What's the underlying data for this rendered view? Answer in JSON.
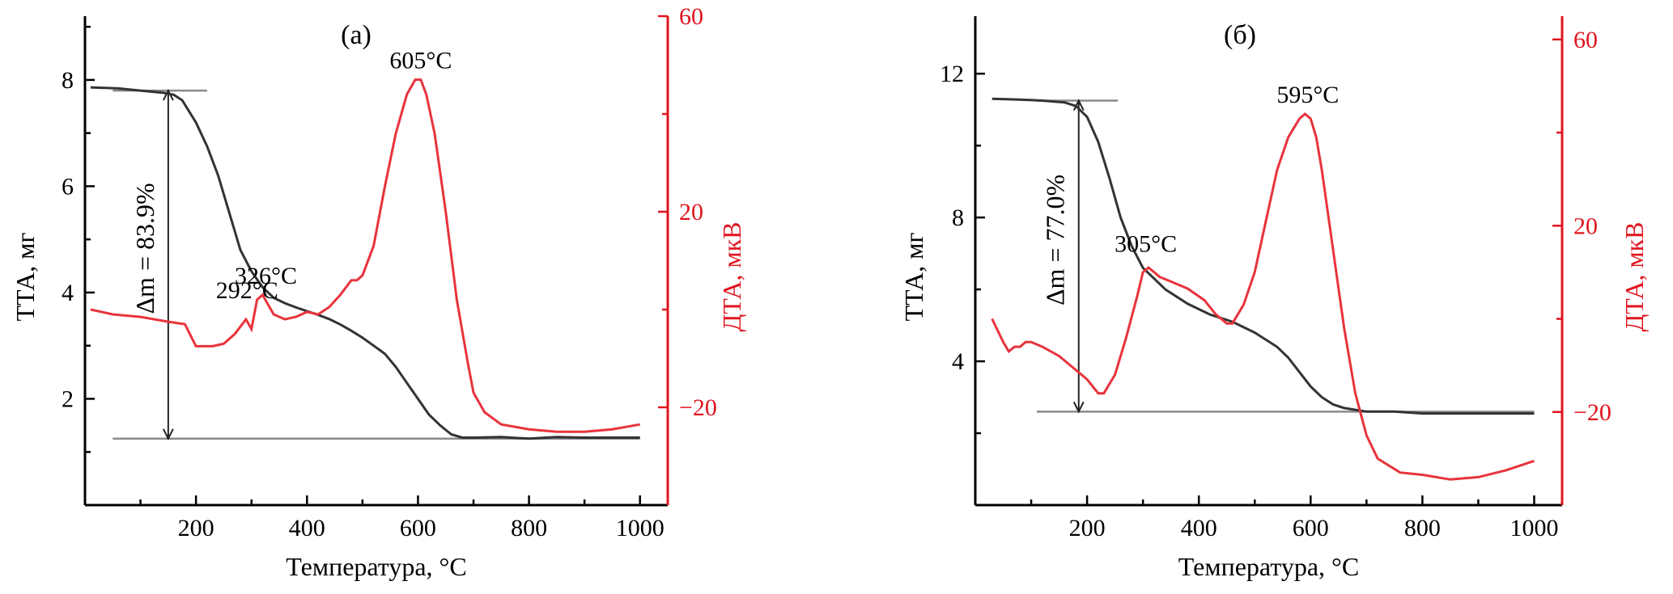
{
  "chart_data": [
    {
      "type": "line",
      "panel_label": "(a)",
      "xlabel": "Температура, °C",
      "ylabel_left": "ТТА, мг",
      "ylabel_right": "ДТА, мкВ",
      "xlim": [
        0,
        1050
      ],
      "ylim_left": [
        0,
        9.2
      ],
      "ylim_right": [
        -40,
        60
      ],
      "xticks": [
        200,
        400,
        600,
        800,
        1000
      ],
      "yticks_left": [
        2,
        4,
        6,
        8
      ],
      "yticks_right": [
        -20,
        20,
        60
      ],
      "ytick_labels_right": [
        "−20",
        "20",
        "60"
      ],
      "mass_loss_label": "Δm = 83.9%",
      "mass_loss_bracket": {
        "x": 150,
        "y_top": 7.8,
        "y_bottom": 1.25,
        "x_from": 50,
        "x_to": 1000
      },
      "annotations": [
        {
          "text": "605°C",
          "x": 605,
          "dta": 47
        },
        {
          "text": "326°C",
          "x": 326,
          "dta": 3
        },
        {
          "text": "292°C",
          "x": 292,
          "dta": 0
        }
      ],
      "series": [
        {
          "axis": "left",
          "color": "#333333",
          "x": [
            10,
            60,
            100,
            140,
            160,
            175,
            200,
            220,
            240,
            260,
            280,
            300,
            320,
            340,
            360,
            380,
            400,
            420,
            440,
            460,
            480,
            500,
            520,
            540,
            560,
            580,
            600,
            620,
            640,
            660,
            680,
            700,
            750,
            800,
            850,
            900,
            1000
          ],
          "y": [
            7.86,
            7.84,
            7.8,
            7.76,
            7.72,
            7.62,
            7.2,
            6.75,
            6.2,
            5.5,
            4.8,
            4.4,
            4.1,
            3.9,
            3.8,
            3.72,
            3.65,
            3.58,
            3.5,
            3.4,
            3.28,
            3.15,
            3.0,
            2.85,
            2.6,
            2.3,
            2.0,
            1.7,
            1.5,
            1.33,
            1.27,
            1.27,
            1.28,
            1.25,
            1.28,
            1.27,
            1.27
          ]
        },
        {
          "axis": "right",
          "color": "#e8333c",
          "x": [
            10,
            50,
            100,
            150,
            180,
            200,
            230,
            250,
            270,
            290,
            300,
            310,
            320,
            330,
            340,
            360,
            380,
            400,
            420,
            440,
            460,
            480,
            490,
            500,
            520,
            540,
            560,
            580,
            595,
            605,
            615,
            630,
            650,
            670,
            690,
            700,
            720,
            750,
            800,
            850,
            900,
            950,
            1000
          ],
          "y": [
            0,
            -1,
            -1.5,
            -2.5,
            -3,
            -7.5,
            -7.5,
            -7,
            -5,
            -2,
            -4,
            2,
            3,
            1,
            -1,
            -2,
            -1.5,
            -0.5,
            -1,
            0.5,
            3,
            6,
            6,
            7,
            13,
            25,
            36,
            44,
            47,
            47,
            44,
            36,
            20,
            2,
            -11,
            -17,
            -21,
            -23.5,
            -24.5,
            -25,
            -25,
            -24.5,
            -23.5
          ]
        }
      ]
    },
    {
      "type": "line",
      "panel_label": "(б)",
      "xlabel": "Температура, °C",
      "ylabel_left": "ТТА, мг",
      "ylabel_right": "ДТА, мкВ",
      "xlim": [
        0,
        1050
      ],
      "ylim_left": [
        0,
        13.6
      ],
      "ylim_right": [
        -40,
        65
      ],
      "xticks": [
        200,
        400,
        600,
        800,
        1000
      ],
      "yticks_left": [
        4,
        8,
        12
      ],
      "yticks_right": [
        -20,
        20,
        60
      ],
      "ytick_labels_right": [
        "−20",
        "20",
        "60"
      ],
      "mass_loss_label": "Δm = 77.0%",
      "mass_loss_bracket": {
        "x": 185,
        "y_top": 11.25,
        "y_bottom": 2.6,
        "x_from": 110,
        "x_to": 1000
      },
      "annotations": [
        {
          "text": "595°C",
          "x": 595,
          "dta": 44
        },
        {
          "text": "305°C",
          "x": 305,
          "dta": 12
        }
      ],
      "series": [
        {
          "axis": "left",
          "color": "#333333",
          "x": [
            30,
            80,
            120,
            160,
            180,
            200,
            220,
            240,
            260,
            280,
            300,
            340,
            380,
            420,
            460,
            500,
            540,
            560,
            580,
            600,
            620,
            640,
            660,
            680,
            700,
            750,
            800,
            850,
            900,
            1000
          ],
          "y": [
            11.3,
            11.28,
            11.25,
            11.2,
            11.1,
            10.8,
            10.1,
            9.1,
            8.0,
            7.2,
            6.6,
            6.0,
            5.6,
            5.3,
            5.1,
            4.8,
            4.4,
            4.1,
            3.7,
            3.3,
            3.0,
            2.8,
            2.7,
            2.65,
            2.6,
            2.6,
            2.55,
            2.55,
            2.55,
            2.55
          ]
        },
        {
          "axis": "right",
          "color": "#e8333c",
          "x": [
            30,
            50,
            60,
            70,
            80,
            90,
            100,
            120,
            150,
            180,
            200,
            220,
            230,
            250,
            270,
            290,
            300,
            310,
            320,
            330,
            350,
            380,
            410,
            430,
            450,
            460,
            480,
            500,
            520,
            540,
            560,
            580,
            590,
            600,
            610,
            620,
            640,
            660,
            680,
            700,
            720,
            760,
            800,
            850,
            900,
            950,
            1000
          ],
          "y": [
            0,
            -5,
            -7,
            -6,
            -6,
            -5,
            -5,
            -6,
            -8,
            -11,
            -13,
            -16,
            -16,
            -12,
            -4,
            5,
            10,
            11,
            10,
            9,
            8,
            6.5,
            4,
            1,
            -1,
            -1,
            3,
            10,
            21,
            32,
            39,
            43,
            44,
            43,
            39,
            32,
            15,
            -2,
            -16,
            -25,
            -30,
            -33,
            -33.5,
            -34.5,
            -34,
            -32.5,
            -30.5
          ]
        }
      ]
    }
  ]
}
